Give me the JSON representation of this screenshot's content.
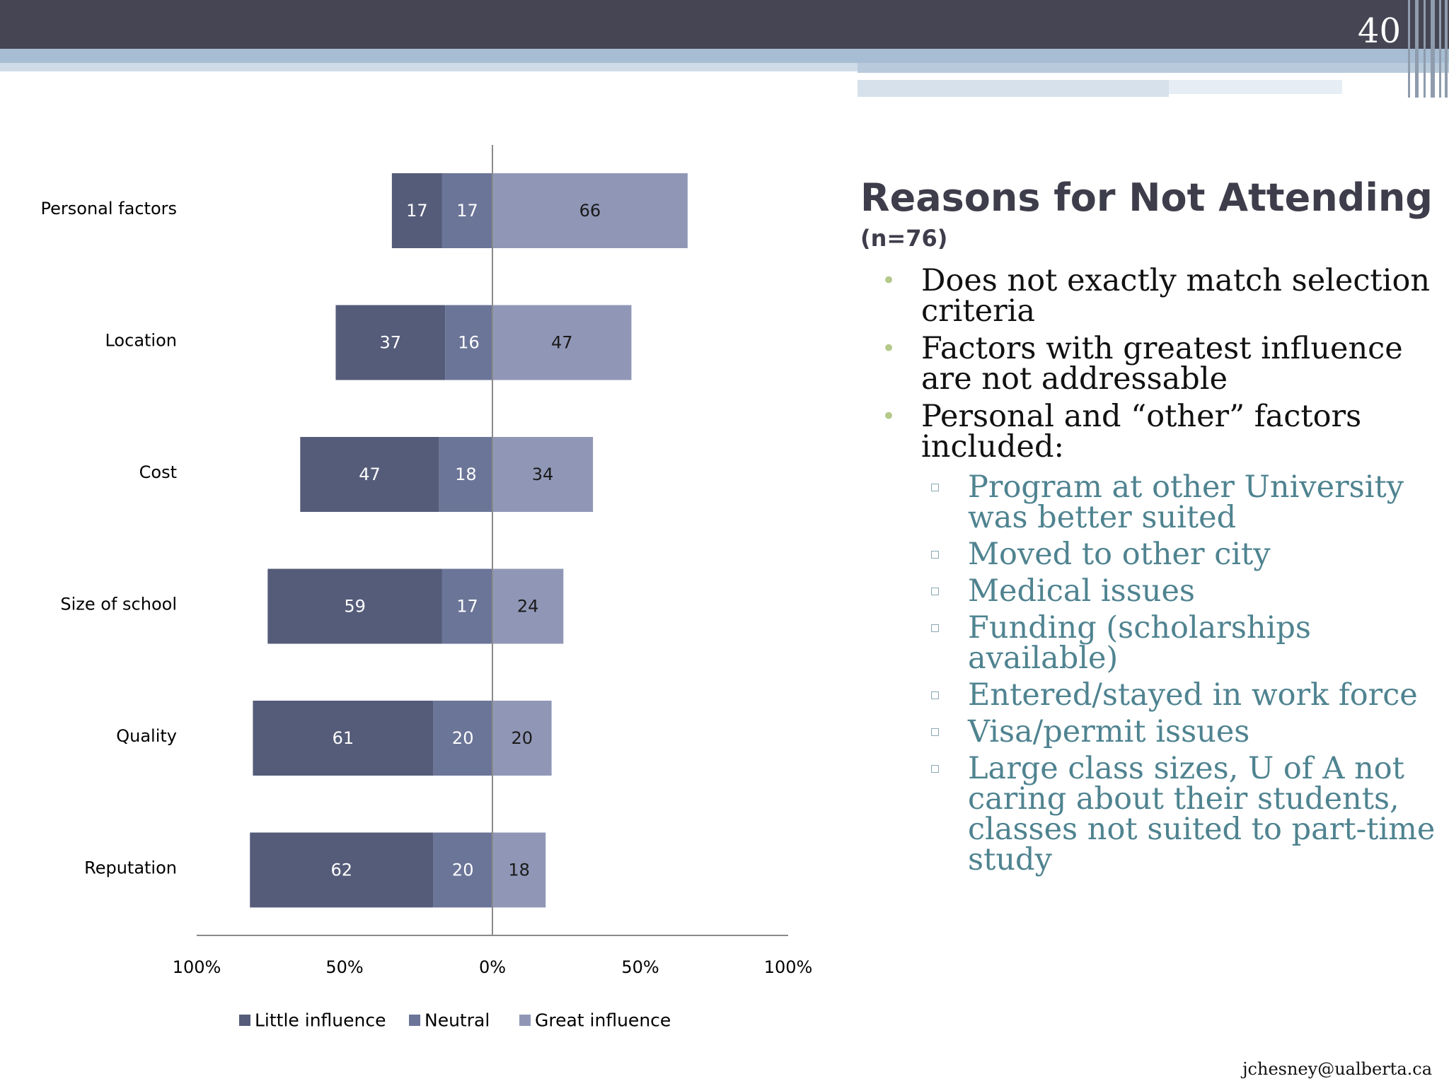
{
  "slide": {
    "number": "40",
    "footer": "jchesney@ualberta.ca"
  },
  "text": {
    "title": "Reasons for Not Attending",
    "subtitle": "(n=76)",
    "bullets": [
      "Does not exactly match selection criteria",
      "Factors with greatest influence are not addressable",
      "Personal and “other” factors included:"
    ],
    "sub_bullets": [
      "Program at other University was better suited",
      "Moved to other city",
      "Medical issues",
      "Funding (scholarships available)",
      "Entered/stayed in work force",
      "Visa/permit issues",
      "Large class sizes, U of A not caring about their students, classes not suited to part-time study"
    ]
  },
  "colors": {
    "little": "#555c79",
    "neutral": "#6b7598",
    "great": "#9097b6",
    "topbar": "#464553",
    "bullet": "#b4c98a",
    "subtext": "#4f8390"
  },
  "chart_data": {
    "type": "bar",
    "orientation": "horizontal",
    "stacked": "diverging",
    "categories": [
      "Personal factors",
      "Location",
      "Cost",
      "Size of school",
      "Quality",
      "Reputation"
    ],
    "series": [
      {
        "name": "Little influence",
        "values": [
          17,
          37,
          47,
          59,
          61,
          62
        ]
      },
      {
        "name": "Neutral",
        "values": [
          17,
          16,
          18,
          17,
          20,
          20
        ]
      },
      {
        "name": "Great influence",
        "values": [
          66,
          47,
          34,
          24,
          20,
          18
        ]
      }
    ],
    "xlim": [
      -100,
      100
    ],
    "xticks": [
      "100%",
      "50%",
      "0%",
      "50%",
      "100%"
    ],
    "legend": "bottom",
    "grid": false
  }
}
